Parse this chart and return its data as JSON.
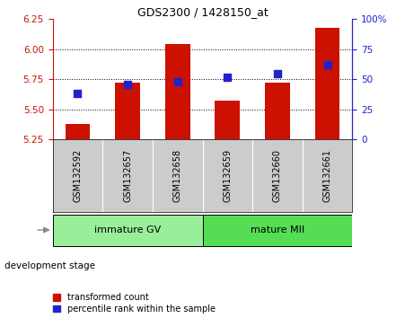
{
  "title": "GDS2300 / 1428150_at",
  "categories": [
    "GSM132592",
    "GSM132657",
    "GSM132658",
    "GSM132659",
    "GSM132660",
    "GSM132661"
  ],
  "bar_values": [
    5.38,
    5.72,
    6.04,
    5.57,
    5.72,
    6.18
  ],
  "bar_baseline": 5.25,
  "percentile_values": [
    38,
    46,
    48,
    52,
    55,
    62
  ],
  "bar_color": "#cc1100",
  "dot_color": "#2222cc",
  "ylim_left": [
    5.25,
    6.25
  ],
  "ylim_right": [
    0,
    100
  ],
  "yticks_left": [
    5.25,
    5.5,
    5.75,
    6.0,
    6.25
  ],
  "yticks_right": [
    0,
    25,
    50,
    75,
    100
  ],
  "ytick_labels_right": [
    "0",
    "25",
    "50",
    "75",
    "100%"
  ],
  "grid_lines": [
    5.5,
    5.75,
    6.0
  ],
  "groups": [
    {
      "label": "immature GV",
      "indices": [
        0,
        1,
        2
      ],
      "color": "#99ee99"
    },
    {
      "label": "mature MII",
      "indices": [
        3,
        4,
        5
      ],
      "color": "#55dd55"
    }
  ],
  "stage_label": "development stage",
  "legend": [
    {
      "label": "transformed count",
      "color": "#cc1100",
      "marker": "s"
    },
    {
      "label": "percentile rank within the sample",
      "color": "#2222cc",
      "marker": "s"
    }
  ],
  "xtick_bg": "#cccccc",
  "plot_bg": "#ffffff"
}
